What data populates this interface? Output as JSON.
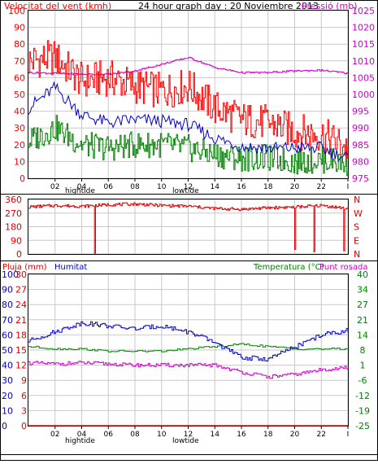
{
  "header": {
    "title": "24 hour graph day : 20 Noviembre 2013",
    "left_label": "Velocitat del vent (kmh)",
    "right_label": "Pressió (mb)"
  },
  "colors": {
    "wind_gust": "#ff0000",
    "wind_avg": "#0000cc",
    "wind_low": "#008000",
    "pressure": "#cc00cc",
    "direction": "#dd0000",
    "humidity": "#0000cc",
    "temperature": "#008000",
    "dewpoint": "#cc00cc",
    "rain": "#dd0000",
    "grid": "#c8c8c8"
  },
  "time_axis": {
    "ticks": [
      "02",
      "04",
      "06",
      "08",
      "10",
      "12",
      "14",
      "16",
      "18",
      "20",
      "22",
      "I"
    ],
    "tide_high_label": "hightide",
    "tide_low_label": "lowtide"
  },
  "chart_data": [
    {
      "type": "line",
      "title": "24 hour graph day : 20 Noviembre 2013",
      "ylabel": "Velocitat del vent (kmh)",
      "ylabel_right": "Pressió (mb)",
      "ylim": [
        0,
        100
      ],
      "yticks": [
        "0",
        "10",
        "20",
        "30",
        "40",
        "50",
        "60",
        "70",
        "80",
        "90",
        "100"
      ],
      "ylim_right": [
        975,
        1025
      ],
      "yticks_right": [
        "975",
        "980",
        "985",
        "990",
        "995",
        "1000",
        "1005",
        "1010",
        "1015",
        "1020",
        "1025"
      ],
      "x": [
        0,
        2,
        4,
        6,
        8,
        10,
        12,
        14,
        16,
        18,
        20,
        22,
        24
      ],
      "series": [
        {
          "key": "gust",
          "values": [
            70,
            72,
            58,
            60,
            55,
            52,
            55,
            42,
            35,
            33,
            28,
            26,
            18
          ]
        },
        {
          "key": "avg",
          "values": [
            42,
            54,
            38,
            33,
            35,
            34,
            32,
            24,
            19,
            18,
            18,
            18,
            12
          ]
        },
        {
          "key": "low",
          "values": [
            22,
            30,
            20,
            18,
            20,
            20,
            18,
            14,
            12,
            12,
            10,
            11,
            9
          ]
        },
        {
          "key": "pressure",
          "axis": "right",
          "values": [
            1006.5,
            1006.3,
            1006.0,
            1006.0,
            1007.0,
            1009.0,
            1011.0,
            1008.0,
            1006.5,
            1006.5,
            1007.0,
            1007.2,
            1006.3
          ]
        }
      ]
    },
    {
      "type": "line",
      "ylim": [
        0,
        360
      ],
      "yticks": [
        "0",
        "90",
        "180",
        "270",
        "360"
      ],
      "yticks_right": [
        "N",
        "W",
        "S",
        "E",
        "N"
      ],
      "x": [
        0,
        2,
        4,
        6,
        8,
        10,
        12,
        14,
        16,
        18,
        20,
        22,
        24
      ],
      "series": [
        {
          "key": "direction",
          "values": [
            310,
            320,
            315,
            325,
            330,
            320,
            315,
            300,
            295,
            305,
            310,
            320,
            300
          ]
        }
      ]
    },
    {
      "type": "line",
      "left_label": "Pluja (mm)",
      "mid_label": "Humitat",
      "right_label_a": "Temperatura (°C)",
      "right_label_b": "Punt rosada",
      "ylim": [
        0,
        100
      ],
      "yticks_left_a": [
        "0",
        "10",
        "20",
        "30",
        "40",
        "50",
        "60",
        "70",
        "80",
        "90",
        "100"
      ],
      "yticks_left_b": [
        "0",
        "3",
        "6",
        "9",
        "12",
        "15",
        "18",
        "21",
        "24",
        "27",
        "30"
      ],
      "ylim_right": [
        -25,
        40
      ],
      "yticks_right": [
        "-25",
        "-19",
        "-12",
        "-6",
        "1",
        "8",
        "14",
        "21",
        "27",
        "34",
        "40"
      ],
      "x": [
        0,
        2,
        4,
        6,
        8,
        10,
        12,
        14,
        16,
        18,
        20,
        22,
        24
      ],
      "series": [
        {
          "key": "humidity",
          "values": [
            56,
            62,
            68,
            66,
            64,
            66,
            62,
            55,
            45,
            44,
            52,
            60,
            63
          ]
        },
        {
          "key": "temperature",
          "axis": "right",
          "values": [
            9,
            8,
            8,
            7,
            7,
            7,
            8,
            9,
            10,
            9,
            8,
            8,
            8
          ]
        },
        {
          "key": "dewpoint",
          "axis": "right",
          "values": [
            2,
            1.5,
            2,
            1.5,
            1,
            1,
            1,
            1,
            -2,
            -4,
            -3,
            -1,
            0
          ]
        },
        {
          "key": "rain",
          "values": [
            0,
            0,
            0,
            0,
            0,
            0,
            0,
            0,
            0,
            0,
            0,
            0,
            0
          ]
        }
      ]
    }
  ]
}
